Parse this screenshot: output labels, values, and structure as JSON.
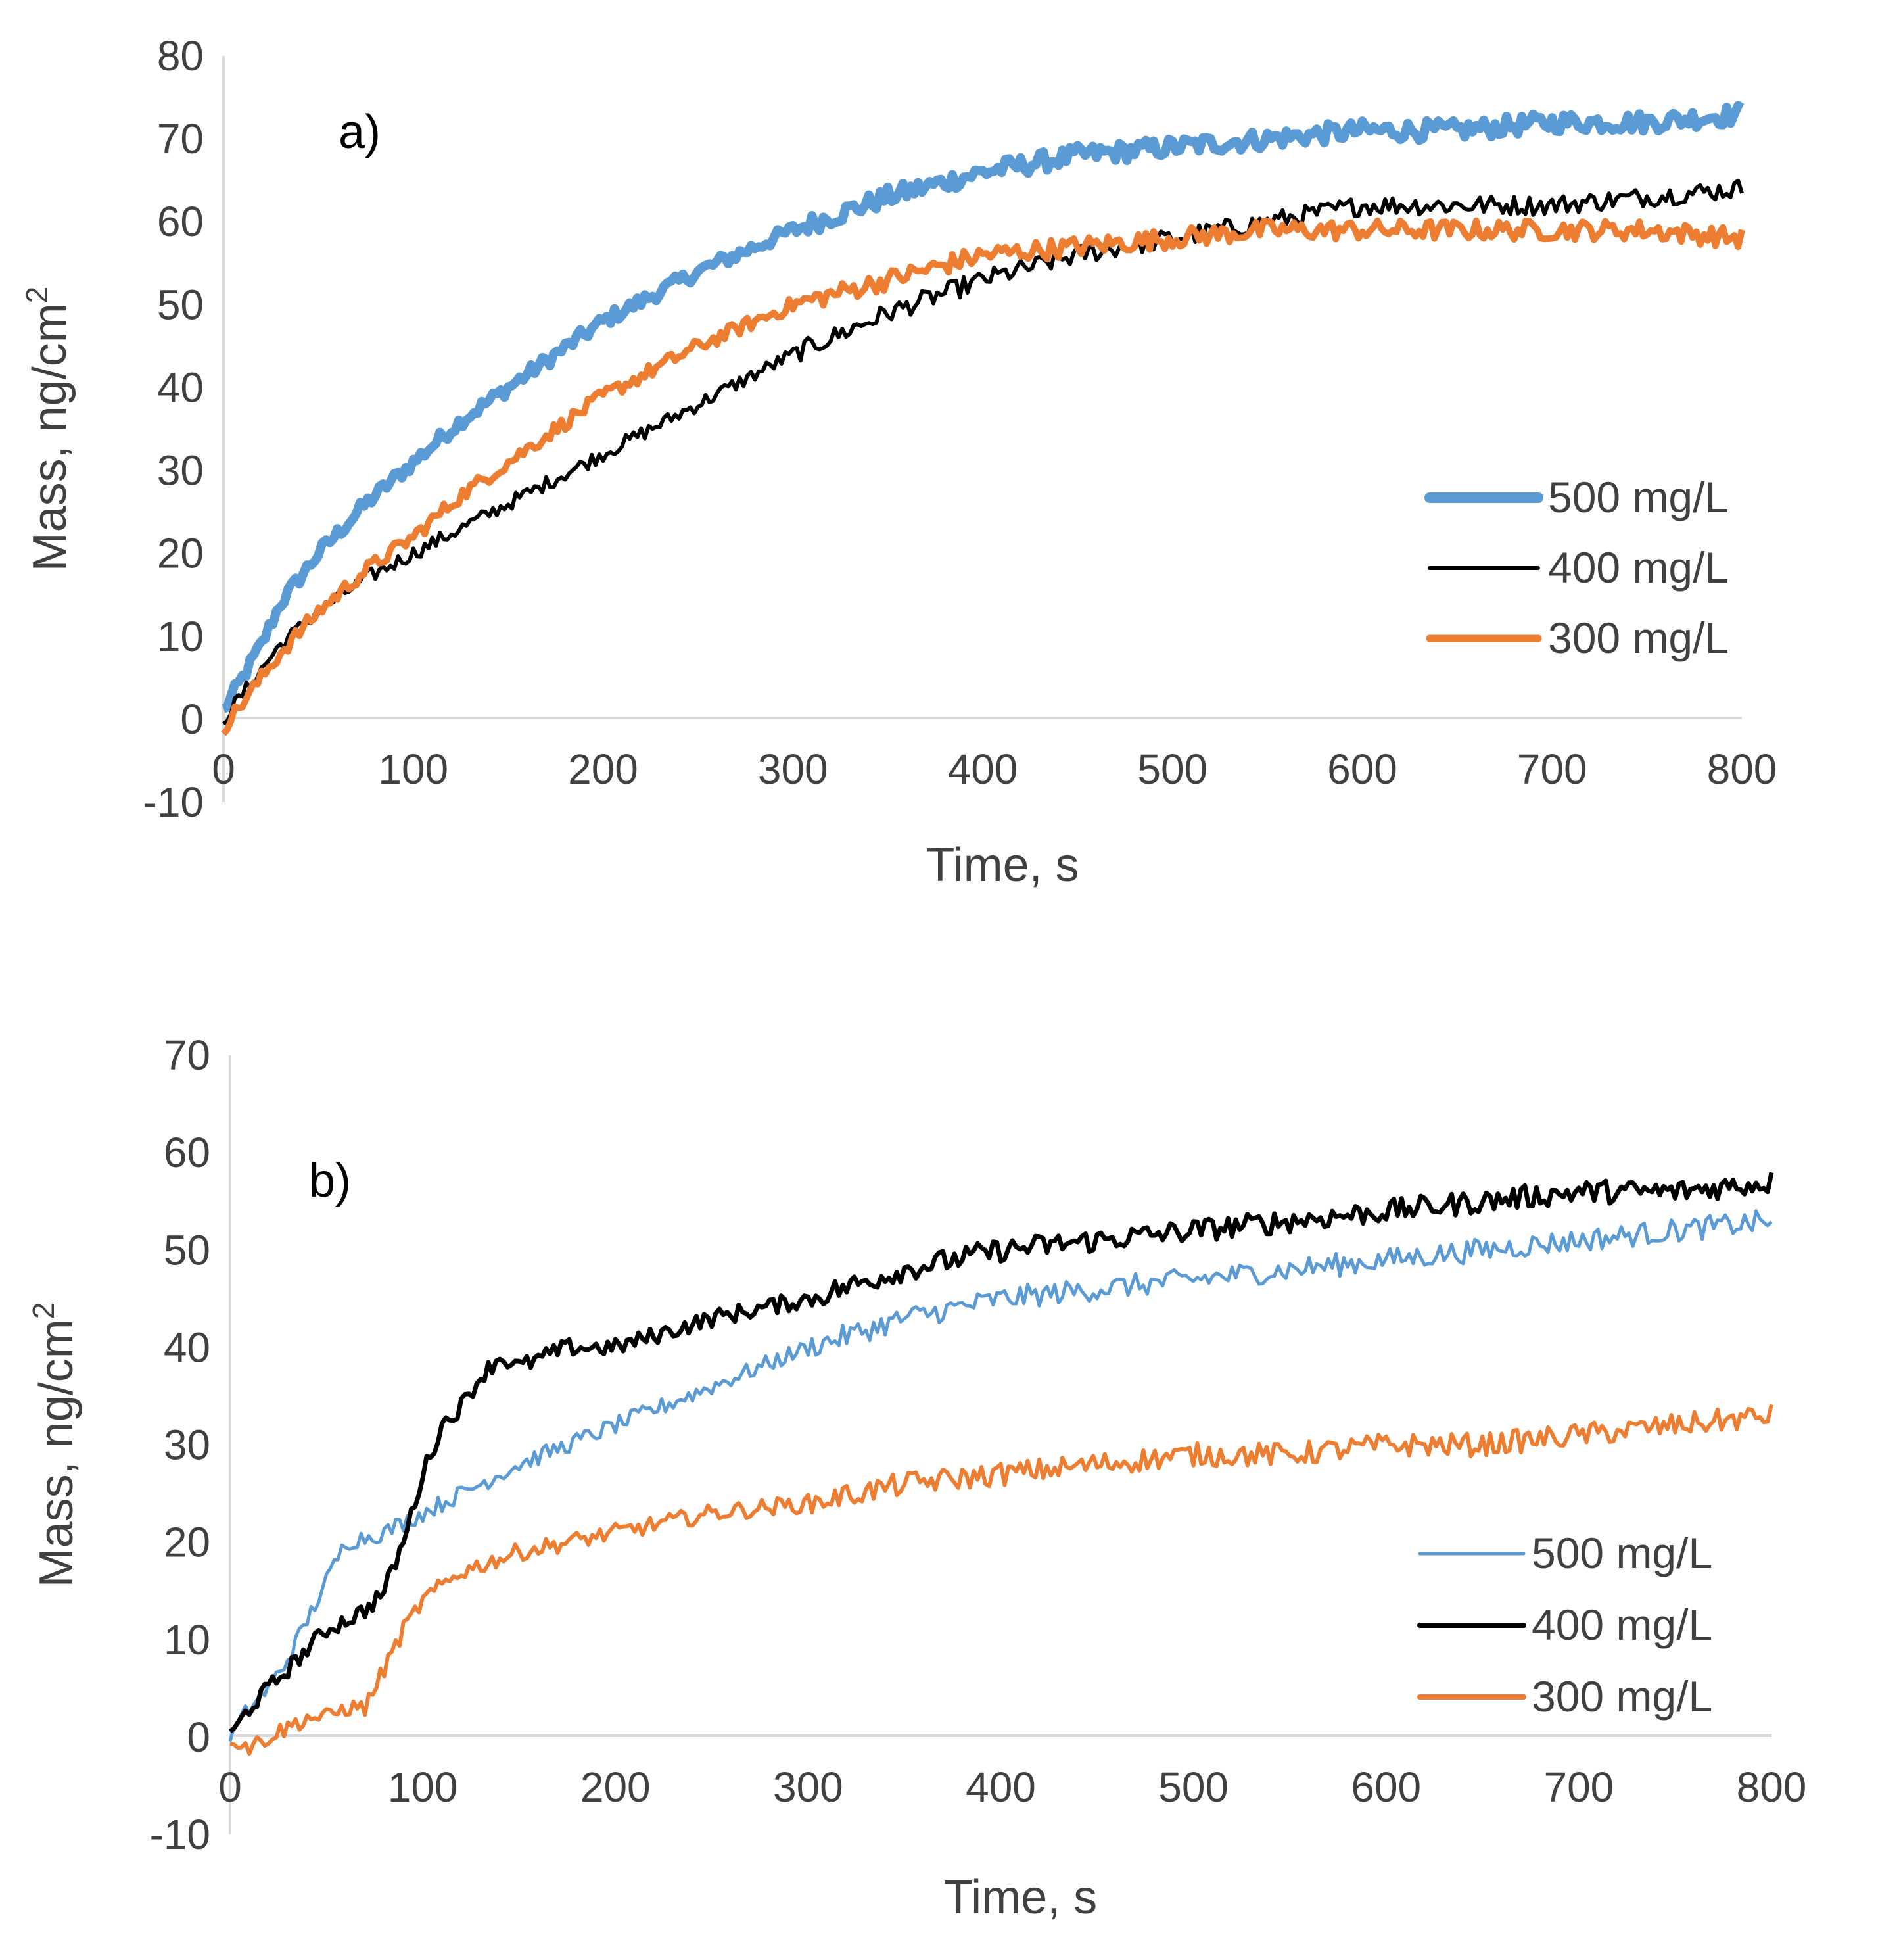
{
  "chart_data": [
    {
      "type": "line",
      "panel_label": "a)",
      "xlabel": "Time, s",
      "ylabel": "Mass, ng/cm",
      "ylabel_superscript": "2",
      "xlim": [
        0,
        800
      ],
      "ylim": [
        -10,
        80
      ],
      "xticks": [
        "0",
        "100",
        "200",
        "300",
        "400",
        "500",
        "600",
        "700",
        "800"
      ],
      "yticks": [
        "-10",
        "0",
        "10",
        "20",
        "30",
        "40",
        "50",
        "60",
        "70",
        "80"
      ],
      "legend_position": "center-right",
      "series": [
        {
          "name": "500 mg/L",
          "color": "#5B9BD5",
          "x": [
            0,
            10,
            20,
            30,
            50,
            75,
            100,
            125,
            150,
            175,
            200,
            250,
            300,
            350,
            400,
            450,
            500,
            550,
            600,
            650,
            700,
            750,
            800
          ],
          "values": [
            1,
            5,
            9,
            14,
            20,
            26,
            31,
            36,
            40,
            44,
            48,
            54,
            59,
            63,
            66,
            68,
            69,
            70,
            71,
            71,
            72,
            72,
            73
          ]
        },
        {
          "name": "400 mg/L",
          "color": "#000000",
          "x": [
            0,
            10,
            20,
            30,
            50,
            75,
            100,
            125,
            150,
            175,
            200,
            250,
            300,
            350,
            400,
            450,
            500,
            550,
            600,
            650,
            700,
            750,
            800
          ],
          "values": [
            0,
            3,
            6,
            9,
            13,
            17,
            20,
            23,
            26,
            29,
            32,
            38,
            44,
            49,
            53,
            56,
            58,
            60,
            62,
            62,
            62,
            63,
            64
          ]
        },
        {
          "name": "300 mg/L",
          "color": "#ED7D31",
          "x": [
            0,
            10,
            20,
            30,
            50,
            75,
            100,
            125,
            150,
            175,
            200,
            250,
            300,
            350,
            400,
            450,
            500,
            550,
            600,
            650,
            700,
            750,
            800
          ],
          "values": [
            -1,
            2,
            5,
            8,
            13,
            18,
            22,
            27,
            31,
            35,
            39,
            45,
            50,
            53,
            56,
            57,
            58,
            59,
            59,
            59,
            59,
            59,
            58
          ]
        }
      ]
    },
    {
      "type": "line",
      "panel_label": "b)",
      "xlabel": "Time, s",
      "ylabel": "Mass, ng/cm",
      "ylabel_superscript": "2",
      "xlim": [
        0,
        800
      ],
      "ylim": [
        -10,
        70
      ],
      "xticks": [
        "0",
        "100",
        "200",
        "300",
        "400",
        "500",
        "600",
        "700",
        "800"
      ],
      "yticks": [
        "-10",
        "0",
        "10",
        "20",
        "30",
        "40",
        "50",
        "60",
        "70"
      ],
      "legend_position": "bottom-right",
      "series": [
        {
          "name": "500 mg/L",
          "color": "#5B9BD5",
          "x": [
            0,
            10,
            20,
            30,
            40,
            50,
            60,
            80,
            100,
            120,
            150,
            200,
            250,
            300,
            350,
            400,
            450,
            500,
            550,
            600,
            650,
            700,
            750,
            800
          ],
          "values": [
            0,
            3,
            5,
            8,
            12,
            16,
            20,
            21,
            23,
            25,
            28,
            32,
            36,
            40,
            43,
            45,
            46,
            47,
            48,
            49,
            50,
            51,
            52,
            53
          ]
        },
        {
          "name": "400 mg/L",
          "color": "#000000",
          "x": [
            0,
            10,
            20,
            30,
            40,
            50,
            60,
            70,
            80,
            90,
            100,
            110,
            120,
            130,
            140,
            150,
            175,
            200,
            250,
            300,
            350,
            400,
            450,
            500,
            550,
            600,
            650,
            700,
            750,
            800
          ],
          "values": [
            0,
            3,
            5,
            7,
            9,
            11,
            12,
            13,
            15,
            20,
            27,
            32,
            34,
            37,
            39,
            38,
            40,
            40,
            43,
            45,
            48,
            50,
            51,
            52,
            53,
            54,
            55,
            56,
            56,
            57
          ]
        },
        {
          "name": "300 mg/L",
          "color": "#ED7D31",
          "x": [
            0,
            10,
            20,
            30,
            40,
            50,
            60,
            70,
            80,
            90,
            100,
            120,
            150,
            200,
            250,
            300,
            350,
            400,
            450,
            500,
            550,
            600,
            650,
            700,
            750,
            800
          ],
          "values": [
            0,
            -1,
            0,
            1,
            2,
            2,
            3,
            3,
            7,
            11,
            14,
            17,
            19,
            21,
            23,
            24,
            26,
            27,
            28,
            29,
            29,
            30,
            30,
            31,
            32,
            33
          ]
        }
      ]
    }
  ]
}
